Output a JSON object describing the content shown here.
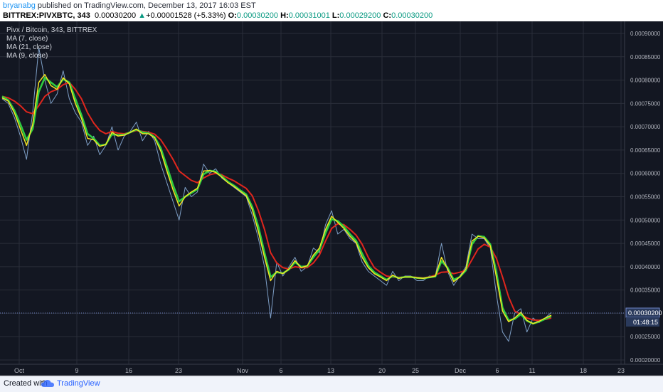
{
  "header": {
    "author": "bryanabg",
    "published": " published on TradingView.com, December 13, 2017 16:03 EST",
    "symbol": "BITTREX:PIVXBTC, 343",
    "last": "0.00030200",
    "change_arrow": "▲",
    "change": "+0.00001528 (+5.33%)",
    "o_label": "O:",
    "o_value": "0.00030200",
    "h_label": "H:",
    "h_value": "0.00031001",
    "l_label": "L:",
    "l_value": "0.00029200",
    "c_label": "C:",
    "c_value": "0.00030200"
  },
  "legend": {
    "title": "Pivx / Bitcoin, 343, BITTREX",
    "ma7": "MA (7, close)",
    "ma21": "MA (21, close)",
    "ma9": "MA (9, close)"
  },
  "price_label": "0.00030200",
  "countdown": "01:48:15",
  "footer": {
    "created": "Created with",
    "brand": "TradingView"
  },
  "colors": {
    "background": "#131722",
    "grid": "#2a2e39",
    "price": "#7e9fc6",
    "ma7": "#f2e422",
    "ma21": "#e0261d",
    "ma9": "#2ecc40",
    "price_line": "#6f86c7"
  },
  "chart_data": {
    "type": "line",
    "symbol": "PIVXBTC",
    "exchange": "BITTREX",
    "x_tick_labels": [
      "Oct",
      "9",
      "16",
      "23",
      "Nov",
      "6",
      "13",
      "20",
      "25",
      "Dec",
      "6",
      "11",
      "18",
      "23"
    ],
    "y_tick_labels": [
      "0.00090000",
      "0.00085000",
      "0.00080000",
      "0.00075000",
      "0.00070000",
      "0.00065000",
      "0.00060000",
      "0.00055000",
      "0.00050000",
      "0.00045000",
      "0.00040000",
      "0.00035000",
      "0.00030000",
      "0.00025000",
      "0.00020000"
    ],
    "ylim": [
      0.0002,
      0.0009
    ],
    "grid": true,
    "last_price": 0.000302,
    "series": [
      {
        "name": "Pivx / Bitcoin",
        "values": [
          0.00076,
          0.00075,
          0.00072,
          0.00068,
          0.00063,
          0.00073,
          0.00087,
          0.0008,
          0.00075,
          0.00077,
          0.00082,
          0.00076,
          0.00073,
          0.00071,
          0.00066,
          0.00068,
          0.00064,
          0.00066,
          0.0007,
          0.00065,
          0.00068,
          0.00069,
          0.00071,
          0.00067,
          0.00069,
          0.00067,
          0.00062,
          0.00058,
          0.00054,
          0.0005,
          0.00057,
          0.00055,
          0.00056,
          0.00062,
          0.0006,
          0.00061,
          0.00059,
          0.00058,
          0.00057,
          0.00056,
          0.00055,
          0.00051,
          0.00046,
          0.0004,
          0.00029,
          0.00041,
          0.00038,
          0.0004,
          0.00042,
          0.00039,
          0.0004,
          0.00044,
          0.00043,
          0.00049,
          0.00052,
          0.00047,
          0.00048,
          0.00046,
          0.00045,
          0.00041,
          0.00039,
          0.00038,
          0.00037,
          0.00036,
          0.00039,
          0.00037,
          0.00038,
          0.00038,
          0.00037,
          0.00037,
          0.00038,
          0.00038,
          0.00045,
          0.00039,
          0.00036,
          0.00038,
          0.0004,
          0.00047,
          0.00046,
          0.00046,
          0.00044,
          0.00034,
          0.00026,
          0.00024,
          0.0003,
          0.00031,
          0.00026,
          0.00029,
          0.00028,
          0.00029,
          0.000302
        ]
      },
      {
        "name": "MA (7, close)",
        "values": [
          0.000762,
          0.000755,
          0.00073,
          0.000695,
          0.00066,
          0.000705,
          0.000795,
          0.000812,
          0.000788,
          0.00078,
          0.000805,
          0.000792,
          0.00075,
          0.000718,
          0.000675,
          0.000672,
          0.000658,
          0.000662,
          0.000688,
          0.00068,
          0.000682,
          0.000688,
          0.000695,
          0.000685,
          0.000685,
          0.000676,
          0.000648,
          0.000605,
          0.000565,
          0.00053,
          0.00055,
          0.00056,
          0.000568,
          0.000605,
          0.000606,
          0.000602,
          0.000592,
          0.00058,
          0.000572,
          0.000562,
          0.000552,
          0.000522,
          0.000475,
          0.00042,
          0.00037,
          0.00039,
          0.000385,
          0.000395,
          0.000413,
          0.000398,
          0.000402,
          0.000425,
          0.00044,
          0.00048,
          0.000508,
          0.000495,
          0.000482,
          0.000465,
          0.000452,
          0.00042,
          0.000398,
          0.000385,
          0.000378,
          0.00037,
          0.000382,
          0.000375,
          0.000378,
          0.000378,
          0.000376,
          0.000375,
          0.000377,
          0.00038,
          0.00042,
          0.000395,
          0.000368,
          0.000378,
          0.000395,
          0.000455,
          0.000465,
          0.000462,
          0.000445,
          0.000378,
          0.000305,
          0.000282,
          0.00029,
          0.000302,
          0.000285,
          0.000278,
          0.000283,
          0.00029,
          0.000296
        ]
      },
      {
        "name": "MA (21, close)",
        "values": [
          0.000765,
          0.000762,
          0.000755,
          0.000745,
          0.000732,
          0.000728,
          0.000745,
          0.000765,
          0.000775,
          0.00078,
          0.00079,
          0.000795,
          0.00078,
          0.00076,
          0.00073,
          0.000708,
          0.000692,
          0.000685,
          0.00069,
          0.000686,
          0.000685,
          0.000688,
          0.000692,
          0.00069,
          0.000688,
          0.000684,
          0.000672,
          0.000652,
          0.00063,
          0.000605,
          0.000595,
          0.000585,
          0.00058,
          0.00059,
          0.000597,
          0.0006,
          0.000597,
          0.00059,
          0.000584,
          0.000576,
          0.000568,
          0.000552,
          0.00052,
          0.00048,
          0.00043,
          0.000408,
          0.000398,
          0.000395,
          0.0004,
          0.000398,
          0.000398,
          0.000408,
          0.000425,
          0.000455,
          0.000482,
          0.000492,
          0.00049,
          0.00048,
          0.000468,
          0.000448,
          0.00042,
          0.000398,
          0.000388,
          0.00038,
          0.000378,
          0.000377,
          0.000378,
          0.000378,
          0.000377,
          0.000376,
          0.000378,
          0.000382,
          0.000388,
          0.000389,
          0.000385,
          0.000388,
          0.000392,
          0.000415,
          0.000438,
          0.000448,
          0.000442,
          0.000418,
          0.000378,
          0.000335,
          0.000305,
          0.000298,
          0.00029,
          0.000286,
          0.000285,
          0.000287,
          0.00029
        ]
      },
      {
        "name": "MA (9, close)",
        "values": [
          0.000765,
          0.000757,
          0.000735,
          0.000705,
          0.000672,
          0.000695,
          0.000775,
          0.000805,
          0.000795,
          0.000785,
          0.000802,
          0.000795,
          0.00076,
          0.000725,
          0.000685,
          0.000675,
          0.00066,
          0.000662,
          0.000684,
          0.000682,
          0.000683,
          0.000688,
          0.000694,
          0.000688,
          0.000686,
          0.000678,
          0.000654,
          0.000615,
          0.000575,
          0.00054,
          0.00055,
          0.000558,
          0.000566,
          0.000598,
          0.000606,
          0.000604,
          0.000594,
          0.000582,
          0.000574,
          0.000564,
          0.000555,
          0.000528,
          0.000485,
          0.00043,
          0.000378,
          0.000388,
          0.000386,
          0.000394,
          0.00041,
          0.0004,
          0.000401,
          0.00042,
          0.000436,
          0.000472,
          0.000502,
          0.000498,
          0.000486,
          0.00047,
          0.000456,
          0.000428,
          0.000402,
          0.000388,
          0.00038,
          0.000372,
          0.00038,
          0.000376,
          0.000378,
          0.000378,
          0.000376,
          0.000375,
          0.000377,
          0.000379,
          0.000412,
          0.000398,
          0.000372,
          0.000378,
          0.000392,
          0.000448,
          0.000466,
          0.000464,
          0.000448,
          0.000388,
          0.000312,
          0.000285,
          0.000288,
          0.000298,
          0.000284,
          0.000278,
          0.000282,
          0.000288,
          0.000294
        ]
      }
    ]
  }
}
